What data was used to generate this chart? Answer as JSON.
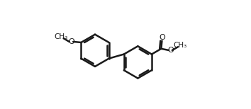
{
  "bg_color": "#ffffff",
  "line_color": "#1a1a1a",
  "line_width": 1.8,
  "fig_width": 3.54,
  "fig_height": 1.54,
  "dpi": 100,
  "xlim": [
    0,
    9.5
  ],
  "ylim": [
    0,
    5.5
  ]
}
